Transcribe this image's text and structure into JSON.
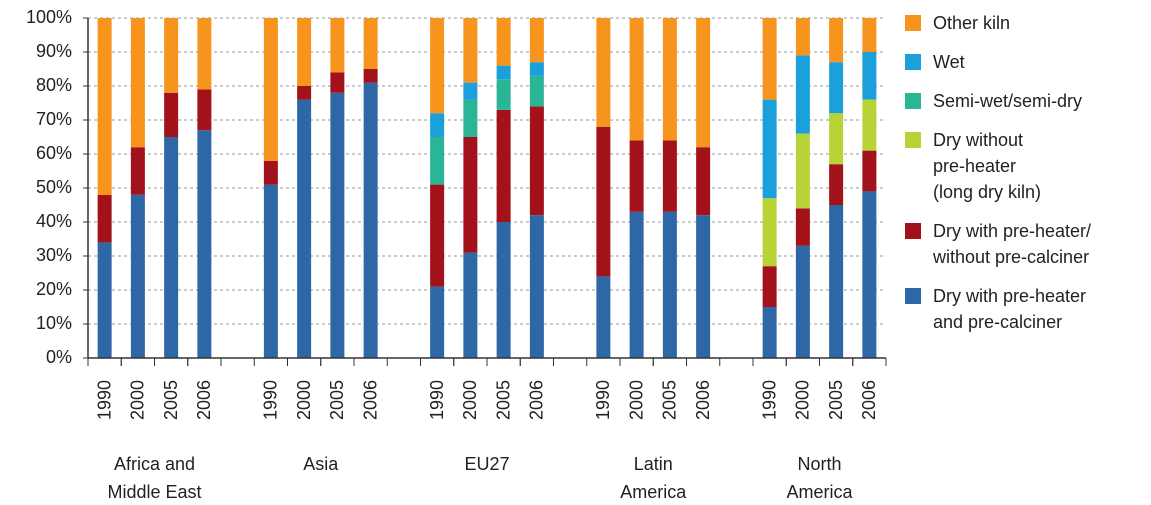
{
  "chart_data": {
    "type": "stacked-bar",
    "groups": [
      {
        "name": "Africa and\nMiddle East",
        "categories": [
          "1990",
          "2000",
          "2005",
          "2006"
        ]
      },
      {
        "name": "Asia",
        "categories": [
          "1990",
          "2000",
          "2005",
          "2006"
        ]
      },
      {
        "name": "EU27",
        "categories": [
          "1990",
          "2000",
          "2005",
          "2006"
        ]
      },
      {
        "name": "Latin\nAmerica",
        "categories": [
          "1990",
          "2000",
          "2005",
          "2006"
        ]
      },
      {
        "name": "North\nAmerica",
        "categories": [
          "1990",
          "2000",
          "2005",
          "2006"
        ]
      }
    ],
    "series": [
      {
        "name": "Dry with pre-heater\nand pre-calciner",
        "color": "#2e67a6",
        "values": [
          34,
          48,
          65,
          67,
          51,
          76,
          78,
          81,
          21,
          31,
          40,
          42,
          24,
          43,
          43,
          42,
          15,
          33,
          45,
          49
        ]
      },
      {
        "name": "Dry with pre-heater/\nwithout pre-calciner",
        "color": "#a3121b",
        "values": [
          14,
          14,
          13,
          12,
          7,
          4,
          6,
          4,
          30,
          34,
          33,
          32,
          44,
          21,
          21,
          20,
          12,
          11,
          12,
          12
        ]
      },
      {
        "name": "Dry without\npre-heater\n(long dry kiln)",
        "color": "#b7d335",
        "values": [
          0,
          0,
          0,
          0,
          0,
          0,
          0,
          0,
          0,
          0,
          0,
          0,
          0,
          0,
          0,
          0,
          20,
          22,
          15,
          15
        ]
      },
      {
        "name": "Semi-wet/semi-dry",
        "color": "#2bb597",
        "values": [
          0,
          0,
          0,
          0,
          0,
          0,
          0,
          0,
          14,
          11,
          9,
          9,
          0,
          0,
          0,
          0,
          0,
          0,
          0,
          0
        ]
      },
      {
        "name": "Wet",
        "color": "#1ca0dc",
        "values": [
          0,
          0,
          0,
          0,
          0,
          0,
          0,
          0,
          7,
          5,
          4,
          4,
          0,
          0,
          0,
          0,
          29,
          23,
          15,
          14
        ]
      },
      {
        "name": "Other kiln",
        "color": "#f7941e",
        "values": [
          52,
          38,
          22,
          21,
          42,
          20,
          16,
          15,
          28,
          19,
          14,
          13,
          32,
          36,
          36,
          38,
          24,
          11,
          13,
          10
        ]
      }
    ],
    "ylim": [
      0,
      100
    ],
    "yticks": [
      {
        "value": 0,
        "label": "0%"
      },
      {
        "value": 10,
        "label": "10%"
      },
      {
        "value": 20,
        "label": "20%"
      },
      {
        "value": 30,
        "label": "30%"
      },
      {
        "value": 40,
        "label": "40%"
      },
      {
        "value": 50,
        "label": "50%"
      },
      {
        "value": 60,
        "label": "60%"
      },
      {
        "value": 70,
        "label": "70%"
      },
      {
        "value": 80,
        "label": "80%"
      },
      {
        "value": 90,
        "label": "90%"
      },
      {
        "value": 100,
        "label": "100%"
      }
    ],
    "grid": true,
    "legend": "right"
  }
}
